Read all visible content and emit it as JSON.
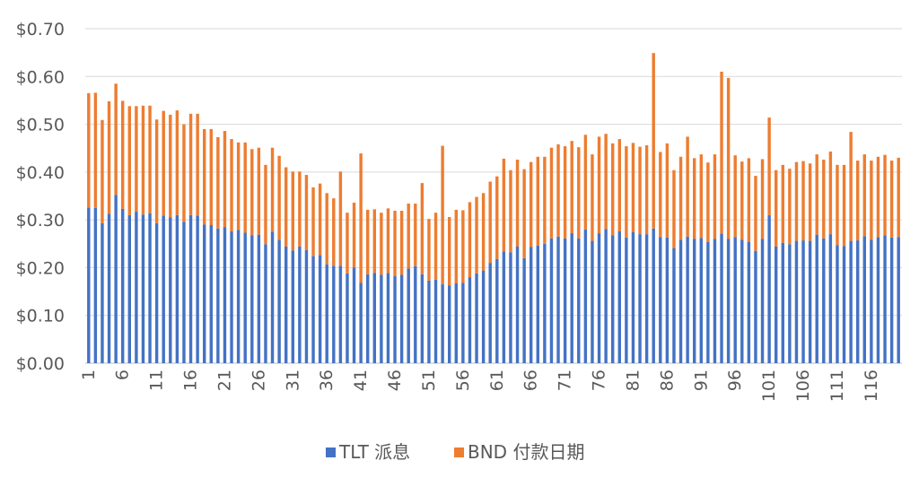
{
  "chart_data": {
    "type": "bar",
    "stacked": true,
    "title": "",
    "xlabel": "",
    "ylabel": "",
    "ylim": [
      0,
      0.7
    ],
    "y_ticks": [
      "$0.00",
      "$0.10",
      "$0.20",
      "$0.30",
      "$0.40",
      "$0.50",
      "$0.60",
      "$0.70"
    ],
    "x_tick_labels": [
      "1",
      "6",
      "11",
      "16",
      "21",
      "26",
      "31",
      "36",
      "41",
      "46",
      "51",
      "56",
      "61",
      "66",
      "71",
      "76",
      "81",
      "86",
      "91",
      "96",
      "101",
      "106",
      "111",
      "116"
    ],
    "grid": true,
    "legend_position": "bottom",
    "colors": {
      "tlt": "#4472C4",
      "bnd": "#ED7D31",
      "grid": "#D9D9D9",
      "axis_text": "#595959"
    },
    "series": [
      {
        "name": "TLT 派息",
        "values": [
          0.326,
          0.325,
          0.293,
          0.313,
          0.352,
          0.323,
          0.31,
          0.317,
          0.311,
          0.314,
          0.293,
          0.309,
          0.305,
          0.31,
          0.296,
          0.31,
          0.309,
          0.29,
          0.289,
          0.282,
          0.285,
          0.276,
          0.279,
          0.273,
          0.268,
          0.269,
          0.249,
          0.275,
          0.258,
          0.244,
          0.236,
          0.244,
          0.237,
          0.224,
          0.226,
          0.207,
          0.204,
          0.204,
          0.188,
          0.2,
          0.168,
          0.186,
          0.189,
          0.185,
          0.189,
          0.182,
          0.185,
          0.198,
          0.203,
          0.186,
          0.173,
          0.175,
          0.165,
          0.163,
          0.167,
          0.168,
          0.18,
          0.188,
          0.194,
          0.21,
          0.218,
          0.234,
          0.232,
          0.244,
          0.22,
          0.243,
          0.246,
          0.25,
          0.261,
          0.265,
          0.261,
          0.272,
          0.261,
          0.28,
          0.256,
          0.272,
          0.281,
          0.268,
          0.276,
          0.263,
          0.274,
          0.27,
          0.27,
          0.282,
          0.264,
          0.263,
          0.241,
          0.258,
          0.265,
          0.26,
          0.262,
          0.254,
          0.26,
          0.271,
          0.26,
          0.264,
          0.258,
          0.254,
          0.235,
          0.26,
          0.31,
          0.244,
          0.252,
          0.249,
          0.256,
          0.257,
          0.256,
          0.269,
          0.261,
          0.27,
          0.247,
          0.245,
          0.256,
          0.257,
          0.266,
          0.258,
          0.264,
          0.268,
          0.263,
          0.264
        ]
      },
      {
        "name": "BND 付款日期",
        "values": [
          0.239,
          0.241,
          0.216,
          0.235,
          0.233,
          0.226,
          0.228,
          0.221,
          0.228,
          0.225,
          0.217,
          0.219,
          0.215,
          0.219,
          0.204,
          0.212,
          0.213,
          0.2,
          0.201,
          0.191,
          0.201,
          0.193,
          0.183,
          0.189,
          0.18,
          0.182,
          0.166,
          0.176,
          0.176,
          0.166,
          0.165,
          0.157,
          0.157,
          0.144,
          0.15,
          0.149,
          0.141,
          0.197,
          0.127,
          0.136,
          0.271,
          0.135,
          0.133,
          0.13,
          0.135,
          0.137,
          0.134,
          0.136,
          0.131,
          0.191,
          0.129,
          0.14,
          0.29,
          0.143,
          0.154,
          0.152,
          0.157,
          0.16,
          0.162,
          0.17,
          0.173,
          0.194,
          0.172,
          0.182,
          0.186,
          0.178,
          0.186,
          0.182,
          0.19,
          0.193,
          0.193,
          0.193,
          0.191,
          0.198,
          0.181,
          0.202,
          0.199,
          0.192,
          0.193,
          0.191,
          0.187,
          0.183,
          0.186,
          0.367,
          0.178,
          0.197,
          0.163,
          0.174,
          0.209,
          0.169,
          0.175,
          0.166,
          0.177,
          0.339,
          0.337,
          0.171,
          0.164,
          0.175,
          0.157,
          0.167,
          0.204,
          0.16,
          0.163,
          0.158,
          0.165,
          0.166,
          0.162,
          0.168,
          0.165,
          0.173,
          0.168,
          0.17,
          0.228,
          0.167,
          0.171,
          0.166,
          0.168,
          0.168,
          0.161,
          0.166
        ]
      }
    ]
  }
}
